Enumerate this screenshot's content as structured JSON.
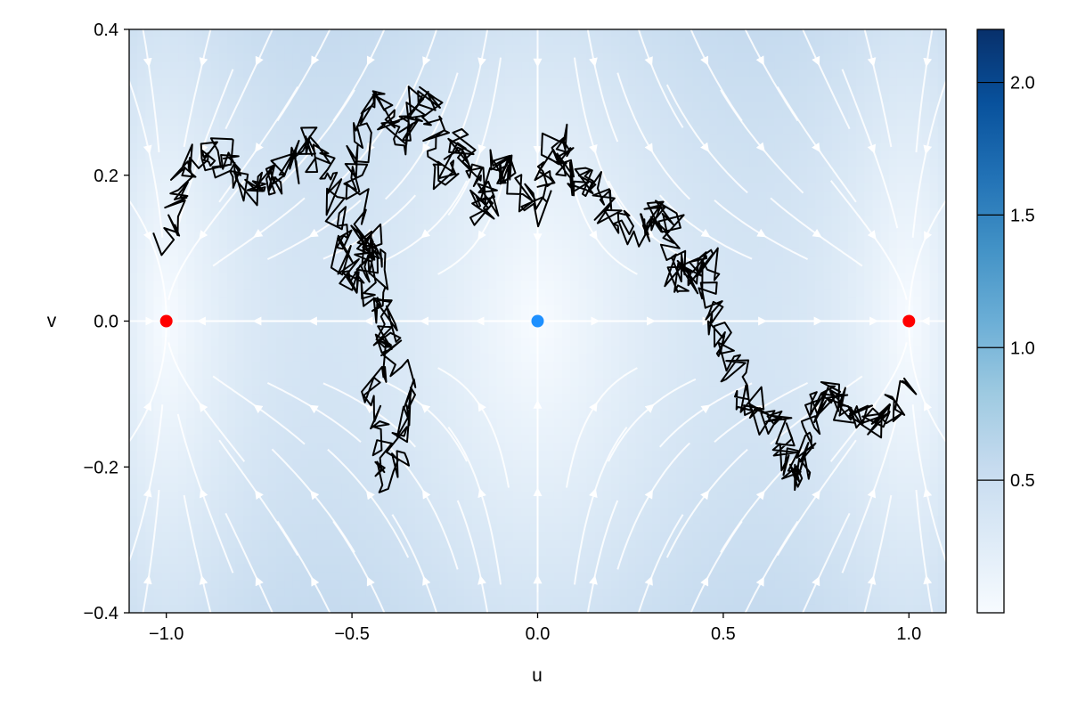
{
  "chart_data": {
    "type": "streamplot-heatmap",
    "xlabel": "u",
    "ylabel": "v",
    "xlim": [
      -1.1,
      1.1
    ],
    "ylim": [
      -0.4,
      0.4
    ],
    "x_ticks": [
      "−1.0",
      "−0.5",
      "0.0",
      "0.5",
      "1.0"
    ],
    "x_tick_values": [
      -1.0,
      -0.5,
      0.0,
      0.5,
      1.0
    ],
    "y_ticks": [
      "−0.4",
      "−0.2",
      "0.0",
      "0.2",
      "0.4"
    ],
    "y_tick_values": [
      -0.4,
      -0.2,
      0.0,
      0.2,
      0.4
    ],
    "colormap": "Blues",
    "colorbar": {
      "range": [
        0.0,
        2.2
      ],
      "ticks": [
        "0.5",
        "1.0",
        "1.5",
        "2.0"
      ],
      "tick_values": [
        0.5,
        1.0,
        1.5,
        2.0
      ]
    },
    "heatmap_field": "magnitude of (u - u^3, -v) flow field",
    "stream_color": "#ffffff",
    "trajectory_color": "#000000",
    "fixed_points": [
      {
        "u": -1.0,
        "v": 0.0,
        "color": "#ff0000"
      },
      {
        "u": 0.0,
        "v": 0.0,
        "color": "#1e90ff"
      },
      {
        "u": 1.0,
        "v": 0.0,
        "color": "#ff0000"
      }
    ],
    "trajectory_waypoints": [
      [
        -1.0,
        0.1
      ],
      [
        -0.95,
        0.22
      ],
      [
        -0.85,
        0.23
      ],
      [
        -0.78,
        0.18
      ],
      [
        -0.7,
        0.2
      ],
      [
        -0.6,
        0.25
      ],
      [
        -0.55,
        0.15
      ],
      [
        -0.5,
        0.05
      ],
      [
        -0.45,
        0.12
      ],
      [
        -0.4,
        0.0
      ],
      [
        -0.45,
        -0.1
      ],
      [
        -0.4,
        -0.22
      ],
      [
        -0.35,
        -0.1
      ],
      [
        -0.45,
        0.05
      ],
      [
        -0.5,
        0.2
      ],
      [
        -0.45,
        0.3
      ],
      [
        -0.35,
        0.25
      ],
      [
        -0.3,
        0.32
      ],
      [
        -0.25,
        0.2
      ],
      [
        -0.2,
        0.25
      ],
      [
        -0.15,
        0.15
      ],
      [
        -0.1,
        0.22
      ],
      [
        0.0,
        0.15
      ],
      [
        0.05,
        0.25
      ],
      [
        0.08,
        0.2
      ],
      [
        0.15,
        0.18
      ],
      [
        0.25,
        0.12
      ],
      [
        0.35,
        0.15
      ],
      [
        0.38,
        0.05
      ],
      [
        0.45,
        0.08
      ],
      [
        0.5,
        -0.02
      ],
      [
        0.55,
        -0.1
      ],
      [
        0.65,
        -0.15
      ],
      [
        0.7,
        -0.22
      ],
      [
        0.75,
        -0.12
      ],
      [
        0.8,
        -0.1
      ],
      [
        0.9,
        -0.15
      ],
      [
        1.0,
        -0.09
      ]
    ]
  }
}
